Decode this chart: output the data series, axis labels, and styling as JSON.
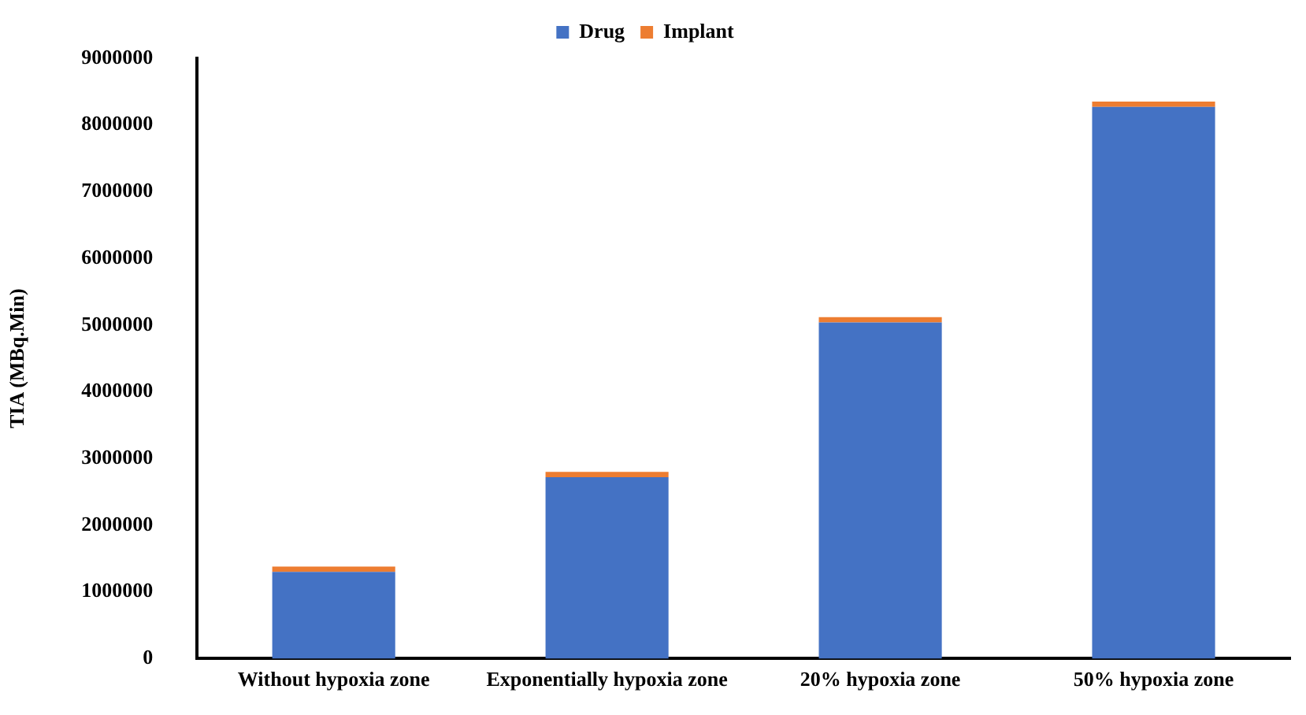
{
  "chart_data": {
    "type": "bar",
    "stacked": true,
    "ylabel": "TIA (MBq.Min)",
    "categories": [
      "Without hypoxia zone",
      "Exponentially hypoxia zone",
      "20% hypoxia zone",
      "50% hypoxia zone"
    ],
    "series": [
      {
        "name": "Drug",
        "color": "#4472c4",
        "values": [
          1300000,
          2720000,
          5040000,
          8270000
        ]
      },
      {
        "name": "Implant",
        "color": "#ed7d31",
        "values": [
          80000,
          80000,
          80000,
          80000
        ]
      }
    ],
    "ylim": [
      0,
      9000000
    ],
    "yticks": [
      0,
      1000000,
      2000000,
      3000000,
      4000000,
      5000000,
      6000000,
      7000000,
      8000000,
      9000000
    ],
    "grid": false,
    "legend": "top"
  }
}
